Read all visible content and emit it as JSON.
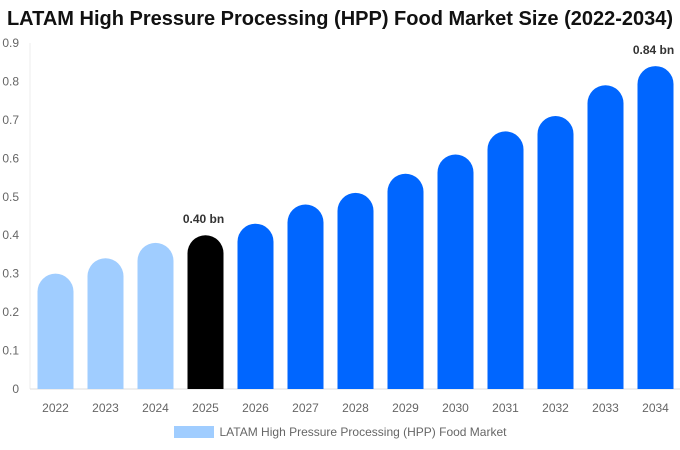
{
  "chart_data": {
    "type": "bar",
    "title": "LATAM High Pressure Processing (HPP) Food Market Size (2022-2034)",
    "categories": [
      "2022",
      "2023",
      "2024",
      "2025",
      "2026",
      "2027",
      "2028",
      "2029",
      "2030",
      "2031",
      "2032",
      "2033",
      "2034"
    ],
    "series": [
      {
        "name": "LATAM High Pressure Processing (HPP) Food Market",
        "values": [
          0.3,
          0.34,
          0.38,
          0.4,
          0.43,
          0.48,
          0.51,
          0.56,
          0.61,
          0.67,
          0.71,
          0.79,
          0.84
        ]
      }
    ],
    "data_labels": {
      "2025": "0.40 bn",
      "2034": "0.84 bn"
    },
    "ylim": [
      0,
      0.9
    ],
    "yticks": [
      "0",
      "0.1",
      "0.2",
      "0.3",
      "0.4",
      "0.5",
      "0.6",
      "0.7",
      "0.8",
      "0.9"
    ],
    "xlabel": "",
    "ylabel": "",
    "grid": false,
    "legend": "bottom",
    "colors": {
      "historical": "#a0cdff",
      "current": "#000000",
      "forecast": "#0066ff"
    },
    "color_by_category": [
      "historical",
      "historical",
      "historical",
      "current",
      "forecast",
      "forecast",
      "forecast",
      "forecast",
      "forecast",
      "forecast",
      "forecast",
      "forecast",
      "forecast"
    ]
  }
}
